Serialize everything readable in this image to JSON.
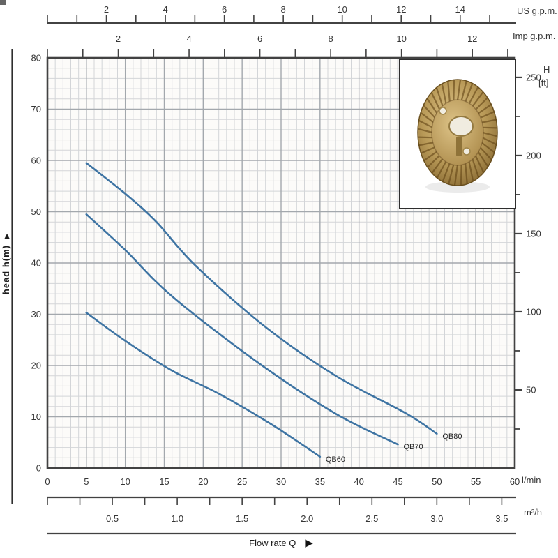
{
  "colors": {
    "curve": "#3e74a3",
    "grid_minor": "#d3d5d8",
    "grid_major": "#a3a8ad",
    "axis": "#424242",
    "text": "#363636",
    "curve_label": "#1f1f1f",
    "plot_bg": "#fcfbf9",
    "brass_light": "#e0c88e",
    "brass_mid": "#b99a58",
    "brass_dark": "#8a6c35",
    "hole_fill": "#f0ece0"
  },
  "icons": {
    "up_arrow": "▲",
    "right_arrow": "▶"
  },
  "axes": {
    "us_gpm": {
      "unit": "US g.p.m.",
      "labeled_ticks": [
        2,
        4,
        6,
        8,
        10,
        12,
        14
      ],
      "minor_tick_step": 1,
      "minor_tick_max": 15,
      "lmin_per_unit": 3.7854
    },
    "imp_gpm": {
      "unit": "Imp g.p.m.",
      "labeled_ticks": [
        2,
        4,
        6,
        8,
        10,
        12
      ],
      "minor_tick_step": 1,
      "minor_tick_max": 13,
      "lmin_per_unit": 4.5461
    },
    "flow_lmin": {
      "unit": "l/min",
      "labeled_ticks": [
        0,
        5,
        10,
        15,
        20,
        25,
        30,
        35,
        40,
        45,
        50,
        55,
        60
      ]
    },
    "flow_m3h": {
      "unit": "m³/h",
      "labeled_ticks": [
        "0.5",
        "1.0",
        "1.5",
        "2.0",
        "2.5",
        "3.0",
        "3.5"
      ],
      "minor_tick_step": 0.25,
      "minor_tick_max": 3.5,
      "lmin_per_unit": 16.667
    },
    "head_m": {
      "title": "head h(m)",
      "labeled_ticks": [
        0,
        10,
        20,
        30,
        40,
        50,
        60,
        70,
        80
      ]
    },
    "head_ft": {
      "title": "H",
      "unit": "[ft]",
      "labeled_ticks": [
        50,
        100,
        150,
        200,
        250
      ],
      "minor_tick_step": 25,
      "m_per_unit": 0.3048
    }
  },
  "flow_axis_title": "Flow rate Q",
  "chart_data": {
    "type": "line",
    "title": "",
    "xlabel": "Flow rate Q",
    "ylabel": "head h(m)",
    "x_unit": "l/min",
    "y_unit": "m",
    "xlim": [
      0,
      60
    ],
    "ylim": [
      0,
      80
    ],
    "grid": true,
    "legend_position": "curve-end-labels",
    "series": [
      {
        "name": "QB60",
        "points": [
          [
            5,
            30.3
          ],
          [
            10,
            24.8
          ],
          [
            16,
            19.0
          ],
          [
            22,
            14.5
          ],
          [
            29,
            8.3
          ],
          [
            35,
            2.2
          ]
        ]
      },
      {
        "name": "QB70",
        "points": [
          [
            5,
            49.5
          ],
          [
            10,
            42.5
          ],
          [
            16,
            33.5
          ],
          [
            27,
            20.6
          ],
          [
            37,
            10.6
          ],
          [
            45,
            4.6
          ]
        ]
      },
      {
        "name": "QB80",
        "points": [
          [
            5,
            59.5
          ],
          [
            10,
            53.5
          ],
          [
            14,
            48.0
          ],
          [
            19,
            39.5
          ],
          [
            28,
            27.5
          ],
          [
            37,
            18.0
          ],
          [
            46,
            10.7
          ],
          [
            50,
            6.7
          ]
        ]
      }
    ]
  }
}
